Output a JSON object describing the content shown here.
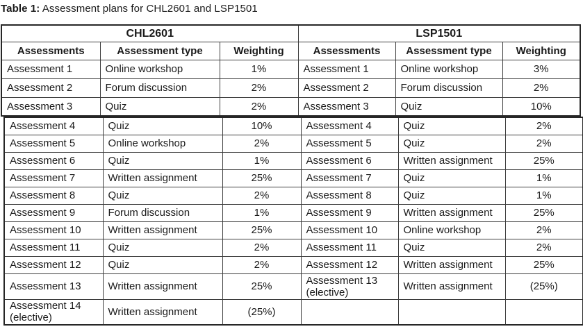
{
  "title": {
    "label": "Table 1:",
    "text": " Assessment plans for CHL2601 and LSP1501"
  },
  "table": {
    "groups": [
      "CHL2601",
      "LSP1501"
    ],
    "columns": [
      "Assessments",
      "Assessment type",
      "Weighting"
    ],
    "rows_top": [
      [
        "Assessment 1",
        "Online workshop",
        "1%",
        "Assessment 1",
        "Online workshop",
        "3%"
      ],
      [
        "Assessment 2",
        "Forum discussion",
        "2%",
        "Assessment 2",
        "Forum discussion",
        "2%"
      ],
      [
        "Assessment 3",
        "Quiz",
        "2%",
        "Assessment 3",
        "Quiz",
        "10%"
      ]
    ],
    "rows_bottom": [
      [
        "Assessment 4",
        "Quiz",
        "10%",
        "Assessment 4",
        "Quiz",
        "2%"
      ],
      [
        "Assessment 5",
        "Online workshop",
        "2%",
        "Assessment 5",
        "Quiz",
        "2%"
      ],
      [
        "Assessment 6",
        "Quiz",
        "1%",
        "Assessment 6",
        "Written assignment",
        "25%"
      ],
      [
        "Assessment 7",
        "Written assignment",
        "25%",
        "Assessment 7",
        "Quiz",
        "1%"
      ],
      [
        "Assessment 8",
        "Quiz",
        "2%",
        "Assessment 8",
        "Quiz",
        "1%"
      ],
      [
        "Assessment 9",
        "Forum discussion",
        "1%",
        "Assessment 9",
        "Written assignment",
        "25%"
      ],
      [
        "Assessment 10",
        "Written assignment",
        "25%",
        "Assessment 10",
        "Online workshop",
        "2%"
      ],
      [
        "Assessment 11",
        "Quiz",
        "2%",
        "Assessment 11",
        "Quiz",
        "2%"
      ],
      [
        "Assessment 12",
        "Quiz",
        "2%",
        "Assessment 12",
        "Written assignment",
        "25%"
      ],
      [
        "Assessment 13",
        "Written assignment",
        "25%",
        "Assessment 13 (elective)",
        "Written assignment",
        "(25%)"
      ],
      [
        "Assessment 14 (elective)",
        "Written assignment",
        "(25%)",
        "",
        "",
        ""
      ]
    ]
  },
  "colors": {
    "text": "#1a1a1a",
    "border_inner": "#3d3d3d",
    "border_outer": "#262626",
    "background": "#ffffff"
  }
}
